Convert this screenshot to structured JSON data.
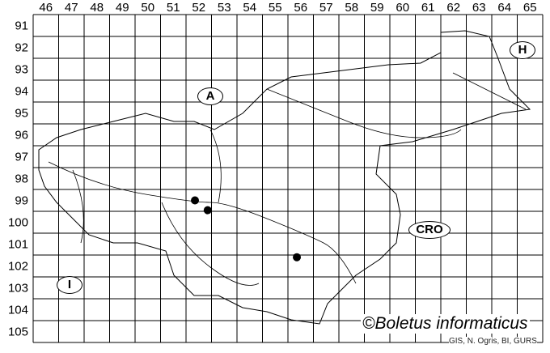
{
  "map": {
    "columns": [
      "46",
      "47",
      "48",
      "49",
      "50",
      "51",
      "52",
      "53",
      "54",
      "55",
      "56",
      "57",
      "58",
      "59",
      "60",
      "61",
      "62",
      "63",
      "64",
      "65"
    ],
    "rows": [
      "91",
      "92",
      "93",
      "94",
      "95",
      "96",
      "97",
      "98",
      "99",
      "100",
      "101",
      "102",
      "103",
      "104",
      "105"
    ],
    "country_labels": {
      "austria": "A",
      "hungary": "H",
      "croatia": "CRO",
      "italy": "I"
    },
    "records": [
      {
        "col": "52",
        "row": "99"
      },
      {
        "col": "52",
        "row": "99"
      },
      {
        "col": "56",
        "row": "102"
      }
    ],
    "colors": {
      "lines": "#000000",
      "records": "#000000",
      "background": "#ffffff"
    }
  },
  "credit": "©Boletus informaticus",
  "source": "GIS, N. Ogris, BI, GURS"
}
